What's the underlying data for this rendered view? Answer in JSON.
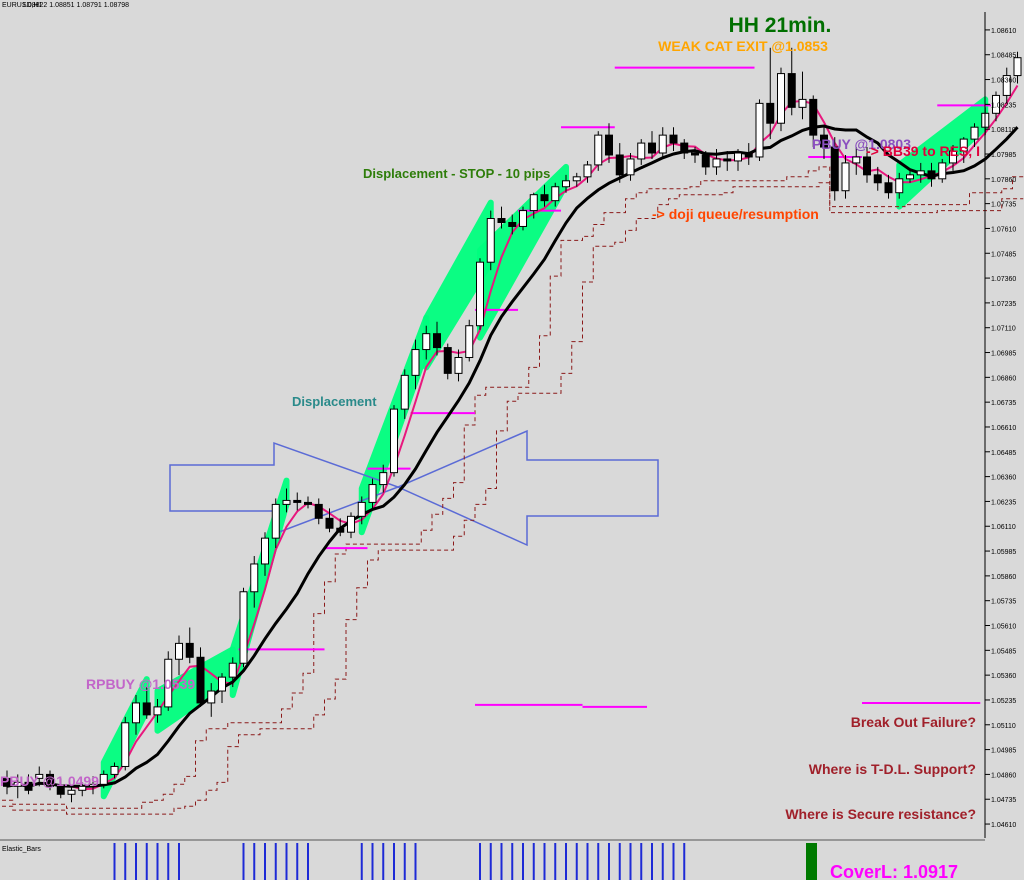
{
  "header": {
    "symbol": "EURUSD,H1",
    "ohlc": "1.08822 1.08851 1.08791 1.08798"
  },
  "indicator_label": "Elastic_Bars",
  "colors": {
    "background": "#d9d9d9",
    "channel": "#00ff7f",
    "ma_black": "#000000",
    "ma_pink": "#e8177e",
    "step_magenta": "#ff00ff",
    "stop_dashed": "#8b1a1a",
    "arrow": "#5b6bd6",
    "histogram": "#1f2bd6",
    "histogram_green": "#007a00"
  },
  "annotations": {
    "hh": "HH 21min.",
    "weak_cat_exit": "WEAK CAT EXIT @1.0853",
    "displacement_stop": "Displacement - STOP - 10 pips",
    "doji": "-> doji queue/resumption",
    "displacement": "Displacement",
    "rpbuy": "RPBUY @1.0539",
    "rpbuy_left": "PBUY @1.0499",
    "rpbuy_right": "PBUY @1.0803",
    "bb_text": "-> BB39 to RES, I",
    "q1": "Break Out Failure?",
    "q2": "Where is T-D.L. Support?",
    "q3": "Where is Secure resistance?",
    "cover": "CoverL: 1.0917"
  },
  "chart_data": {
    "type": "candlestick",
    "y_axis_ticks": [
      "1.08610",
      "1.08485",
      "1.08360",
      "1.08235",
      "1.08110",
      "1.07985",
      "1.07860",
      "1.07735",
      "1.07610",
      "1.07485",
      "1.07360",
      "1.07235",
      "1.07110",
      "1.06985",
      "1.06860",
      "1.06735",
      "1.06610",
      "1.06485",
      "1.06360",
      "1.06235",
      "1.06110",
      "1.05985",
      "1.05860",
      "1.05735",
      "1.05610",
      "1.05485",
      "1.05360",
      "1.05235",
      "1.05110",
      "1.04985",
      "1.04860",
      "1.04735",
      "1.04610"
    ],
    "ylim": [
      1.0458,
      1.0867
    ],
    "candles": [
      [
        1.0484,
        1.0488,
        1.0476,
        1.048
      ],
      [
        1.048,
        1.0486,
        1.0474,
        1.0482
      ],
      [
        1.0482,
        1.0486,
        1.0476,
        1.0478
      ],
      [
        1.0484,
        1.049,
        1.048,
        1.0486
      ],
      [
        1.0486,
        1.0488,
        1.0478,
        1.048
      ],
      [
        1.048,
        1.0484,
        1.0474,
        1.0476
      ],
      [
        1.0476,
        1.048,
        1.0472,
        1.0478
      ],
      [
        1.0478,
        1.0482,
        1.0475,
        1.048
      ],
      [
        1.048,
        1.0485,
        1.0476,
        1.0481
      ],
      [
        1.0481,
        1.0488,
        1.0479,
        1.0486
      ],
      [
        1.0486,
        1.0492,
        1.0484,
        1.049
      ],
      [
        1.049,
        1.0515,
        1.0488,
        1.0512
      ],
      [
        1.0512,
        1.0526,
        1.0506,
        1.0522
      ],
      [
        1.0522,
        1.053,
        1.0514,
        1.0516
      ],
      [
        1.0516,
        1.0524,
        1.0512,
        1.052
      ],
      [
        1.052,
        1.0548,
        1.0518,
        1.0544
      ],
      [
        1.0544,
        1.0556,
        1.0536,
        1.0552
      ],
      [
        1.0552,
        1.056,
        1.0542,
        1.0545
      ],
      [
        1.0545,
        1.055,
        1.052,
        1.0522
      ],
      [
        1.0522,
        1.0532,
        1.0515,
        1.0528
      ],
      [
        1.0528,
        1.0537,
        1.0522,
        1.0535
      ],
      [
        1.0535,
        1.0545,
        1.053,
        1.0542
      ],
      [
        1.0542,
        1.058,
        1.054,
        1.0578
      ],
      [
        1.0578,
        1.0596,
        1.057,
        1.0592
      ],
      [
        1.0592,
        1.0608,
        1.0586,
        1.0605
      ],
      [
        1.0605,
        1.0625,
        1.06,
        1.0622
      ],
      [
        1.0622,
        1.063,
        1.0618,
        1.0624
      ],
      [
        1.0624,
        1.0628,
        1.0619,
        1.0623
      ],
      [
        1.0623,
        1.0626,
        1.062,
        1.0622
      ],
      [
        1.0622,
        1.0625,
        1.0612,
        1.0615
      ],
      [
        1.0615,
        1.062,
        1.0608,
        1.061
      ],
      [
        1.061,
        1.0615,
        1.0606,
        1.0608
      ],
      [
        1.0608,
        1.0618,
        1.0605,
        1.0616
      ],
      [
        1.0616,
        1.0626,
        1.0612,
        1.0623
      ],
      [
        1.0623,
        1.0635,
        1.062,
        1.0632
      ],
      [
        1.0632,
        1.0642,
        1.0628,
        1.0638
      ],
      [
        1.0638,
        1.0672,
        1.0636,
        1.067
      ],
      [
        1.067,
        1.069,
        1.0665,
        1.0687
      ],
      [
        1.0687,
        1.0705,
        1.068,
        1.07
      ],
      [
        1.07,
        1.0712,
        1.0695,
        1.0708
      ],
      [
        1.0708,
        1.0714,
        1.0697,
        1.0701
      ],
      [
        1.0701,
        1.0703,
        1.0685,
        1.0688
      ],
      [
        1.0688,
        1.07,
        1.0684,
        1.0696
      ],
      [
        1.0696,
        1.0715,
        1.0694,
        1.0712
      ],
      [
        1.0712,
        1.0746,
        1.071,
        1.0744
      ],
      [
        1.0744,
        1.077,
        1.074,
        1.0766
      ],
      [
        1.0766,
        1.0772,
        1.0761,
        1.0764
      ],
      [
        1.0764,
        1.0768,
        1.0758,
        1.0762
      ],
      [
        1.0762,
        1.0772,
        1.076,
        1.077
      ],
      [
        1.077,
        1.0779,
        1.0766,
        1.0778
      ],
      [
        1.0778,
        1.0783,
        1.0772,
        1.0775
      ],
      [
        1.0775,
        1.0784,
        1.0772,
        1.0782
      ],
      [
        1.0782,
        1.0788,
        1.0779,
        1.0785
      ],
      [
        1.0785,
        1.0789,
        1.0782,
        1.0787
      ],
      [
        1.0787,
        1.0795,
        1.0784,
        1.0793
      ],
      [
        1.0793,
        1.081,
        1.079,
        1.0808
      ],
      [
        1.0808,
        1.0814,
        1.0794,
        1.0798
      ],
      [
        1.0798,
        1.0804,
        1.0784,
        1.0788
      ],
      [
        1.0788,
        1.0799,
        1.0785,
        1.0796
      ],
      [
        1.0796,
        1.0806,
        1.0793,
        1.0804
      ],
      [
        1.0804,
        1.081,
        1.0796,
        1.0799
      ],
      [
        1.0799,
        1.0812,
        1.0796,
        1.0808
      ],
      [
        1.0808,
        1.0812,
        1.08,
        1.0804
      ],
      [
        1.0804,
        1.0806,
        1.0796,
        1.0799
      ],
      [
        1.0799,
        1.0802,
        1.0794,
        1.0798
      ],
      [
        1.0798,
        1.08,
        1.0788,
        1.0792
      ],
      [
        1.0792,
        1.0801,
        1.0788,
        1.0796
      ],
      [
        1.0796,
        1.08,
        1.079,
        1.0795
      ],
      [
        1.0795,
        1.0801,
        1.079,
        1.0799
      ],
      [
        1.0799,
        1.0804,
        1.0793,
        1.0797
      ],
      [
        1.0797,
        1.0826,
        1.0795,
        1.0824
      ],
      [
        1.0824,
        1.0852,
        1.0806,
        1.0814
      ],
      [
        1.0814,
        1.0842,
        1.081,
        1.0839
      ],
      [
        1.0839,
        1.0852,
        1.0818,
        1.0822
      ],
      [
        1.0822,
        1.084,
        1.0816,
        1.0826
      ],
      [
        1.0826,
        1.0828,
        1.0802,
        1.0808
      ],
      [
        1.0808,
        1.0812,
        1.0796,
        1.0802
      ],
      [
        1.0802,
        1.0807,
        1.0775,
        1.078
      ],
      [
        1.078,
        1.0798,
        1.0776,
        1.0794
      ],
      [
        1.0794,
        1.0802,
        1.0788,
        1.0797
      ],
      [
        1.0797,
        1.0802,
        1.0784,
        1.0788
      ],
      [
        1.0788,
        1.0792,
        1.078,
        1.0784
      ],
      [
        1.0784,
        1.0788,
        1.0776,
        1.0779
      ],
      [
        1.0779,
        1.0789,
        1.0776,
        1.0786
      ],
      [
        1.0786,
        1.0791,
        1.0784,
        1.0788
      ],
      [
        1.0788,
        1.0794,
        1.0784,
        1.079
      ],
      [
        1.079,
        1.0794,
        1.0782,
        1.0786
      ],
      [
        1.0786,
        1.0796,
        1.0784,
        1.0794
      ],
      [
        1.0794,
        1.0803,
        1.079,
        1.08
      ],
      [
        1.08,
        1.0807,
        1.0794,
        1.0806
      ],
      [
        1.0806,
        1.0814,
        1.0802,
        1.0812
      ],
      [
        1.0812,
        1.0822,
        1.0808,
        1.0819
      ],
      [
        1.0819,
        1.083,
        1.0815,
        1.0828
      ],
      [
        1.0828,
        1.0842,
        1.0824,
        1.0838
      ],
      [
        1.0838,
        1.085,
        1.0834,
        1.0847
      ]
    ]
  }
}
